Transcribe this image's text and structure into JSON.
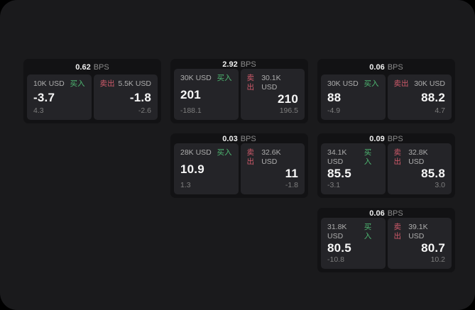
{
  "labels": {
    "buy": "买入",
    "sell": "卖出",
    "bps_suffix": "BPS"
  },
  "colors": {
    "page_bg": "#1a1a1c",
    "card_bg": "#121214",
    "panel_bg": "#242428",
    "buy_green": "#4eb872",
    "sell_red": "#cf5a6a",
    "muted_text": "#8b8b8b",
    "amount_text": "#aeaeae",
    "sub_text": "#7e7e7e"
  },
  "cards": [
    {
      "bps": "0.62",
      "buy": {
        "amount": "10K USD",
        "value": "-3.7",
        "sub": "4.3"
      },
      "sell": {
        "amount": "5.5K USD",
        "value": "-1.8",
        "sub": "-2.6"
      }
    },
    {
      "bps": "2.92",
      "buy": {
        "amount": "30K USD",
        "value": "201",
        "sub": "-188.1"
      },
      "sell": {
        "amount": "30.1K USD",
        "value": "210",
        "sub": "196.5"
      }
    },
    {
      "bps": "0.06",
      "buy": {
        "amount": "30K USD",
        "value": "88",
        "sub": "-4.9"
      },
      "sell": {
        "amount": "30K USD",
        "value": "88.2",
        "sub": "4.7"
      }
    },
    {
      "bps": "0.03",
      "buy": {
        "amount": "28K USD",
        "value": "10.9",
        "sub": "1.3"
      },
      "sell": {
        "amount": "32.6K USD",
        "value": "11",
        "sub": "-1.8"
      }
    },
    {
      "bps": "0.09",
      "buy": {
        "amount": "34.1K USD",
        "value": "85.5",
        "sub": "-3.1"
      },
      "sell": {
        "amount": "32.8K USD",
        "value": "85.8",
        "sub": "3.0"
      }
    },
    {
      "bps": "0.06",
      "buy": {
        "amount": "31.8K USD",
        "value": "80.5",
        "sub": "-10.8"
      },
      "sell": {
        "amount": "39.1K USD",
        "value": "80.7",
        "sub": "10.2"
      }
    }
  ]
}
